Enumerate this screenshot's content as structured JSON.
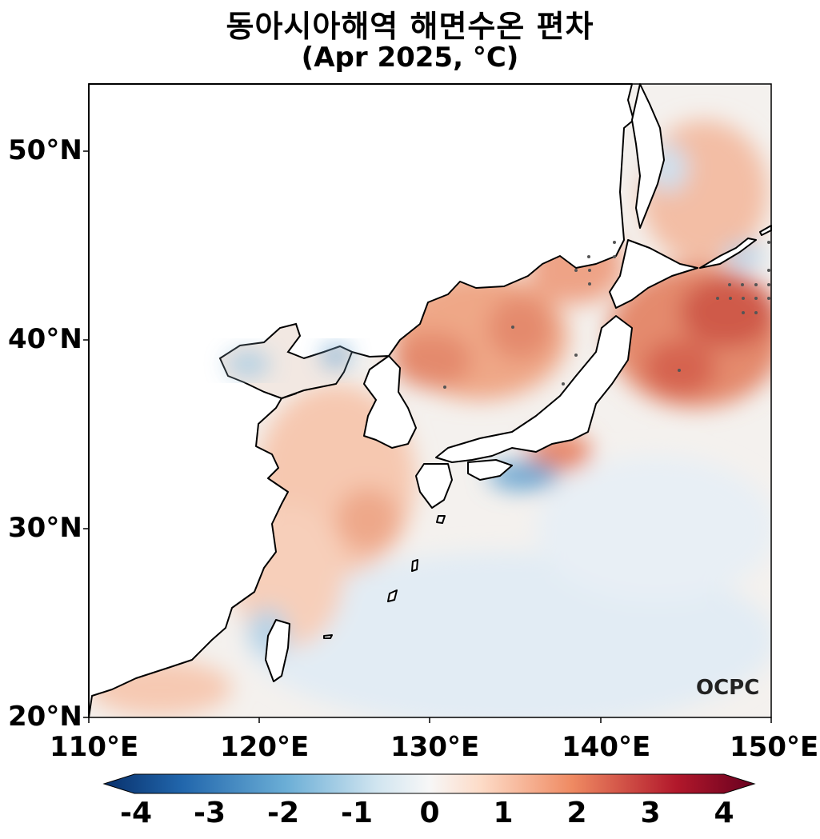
{
  "title": "동아시아해역 해면수온 편차",
  "subtitle": "(Apr 2025, °C)",
  "lat_labels": [
    "50°N",
    "40°N",
    "30°N",
    "20°N"
  ],
  "lon_labels": [
    "110°E",
    "120°E",
    "130°E",
    "140°E",
    "150°E"
  ],
  "colorbar": {
    "ticks": [
      "-4",
      "-3",
      "-2",
      "-1",
      "0",
      "1",
      "2",
      "3",
      "4"
    ],
    "min": -4,
    "max": 4,
    "extend": "both",
    "colormap": "RdBu_r"
  },
  "logo": "OCPC",
  "colors": {
    "warm": "#e8927a",
    "strong_warm": "#c8463e",
    "cool": "#9fcae1",
    "strong_cool": "#4a90c4",
    "neutral": "#f7f4f1"
  }
}
